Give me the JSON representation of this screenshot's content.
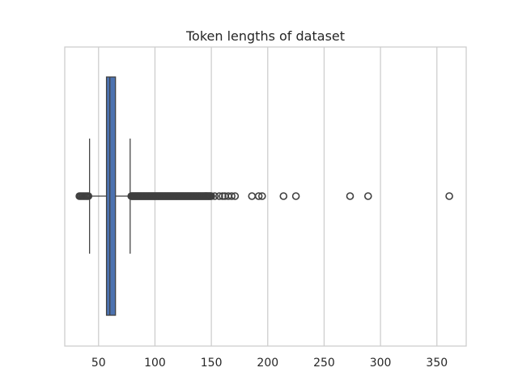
{
  "chart_data": {
    "type": "boxplot",
    "title": "Token lengths of dataset",
    "xlabel": "",
    "ylabel": "",
    "xlim": [
      20,
      376
    ],
    "xticks": [
      50,
      100,
      150,
      200,
      250,
      300,
      350
    ],
    "grid": "vertical",
    "orientation": "horizontal",
    "box_color": "#4c72b0",
    "edge_color": "#3f3f3f",
    "grid_color": "#cccccc",
    "whisker_low": 42,
    "q1": 57,
    "median": 60,
    "q3": 65,
    "whisker_high": 78,
    "outliers_low": [
      33,
      34,
      35,
      36,
      37,
      38,
      39,
      40,
      41
    ],
    "outlier_band_high": [
      79,
      150
    ],
    "outliers_high": [
      153,
      157,
      160,
      162,
      165,
      168,
      171,
      186,
      192,
      195,
      214,
      225,
      273,
      289,
      361
    ]
  }
}
